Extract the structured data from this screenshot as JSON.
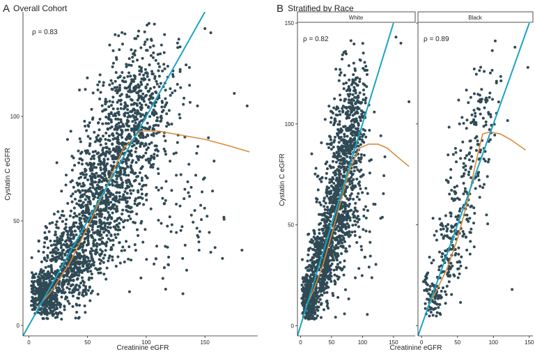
{
  "panels": [
    {
      "letter": "A",
      "title": "Overall Cohort",
      "xlabel": "Creatinine eGFR",
      "ylabel": "Cystatin C eGFR"
    },
    {
      "letter": "B",
      "title": "Stratified by Race",
      "xlabel": "Creatinine eGFR",
      "ylabel": "Cystatin C eGFR",
      "facets": [
        "White",
        "Black"
      ]
    }
  ],
  "colors": {
    "points": "#2f4a55",
    "identity_line": "#1aa3c4",
    "smooth_line": "#d9893a",
    "axis": "#222222",
    "strip_fill": "#ffffff"
  },
  "chart_data": [
    {
      "type": "scatter",
      "title": "Overall Cohort",
      "xlabel": "Creatinine eGFR",
      "ylabel": "Cystatin C eGFR",
      "xlim": [
        -5,
        195
      ],
      "ylim": [
        -5,
        150
      ],
      "xticks": [
        0,
        50,
        100,
        150
      ],
      "yticks": [
        0,
        50,
        100
      ],
      "grid": false,
      "annotation": "ρ = 0.83",
      "identity_line": {
        "x": [
          -5,
          150
        ],
        "y": [
          -5,
          150
        ]
      },
      "smooth_line": {
        "x": [
          8,
          20,
          35,
          50,
          65,
          80,
          95,
          110,
          130,
          150,
          170,
          188
        ],
        "y": [
          9,
          17,
          30,
          47,
          65,
          84,
          93,
          93,
          91,
          89,
          86,
          83
        ]
      },
      "n_points_approx": 2500,
      "point_clusters": [
        {
          "x": 15,
          "y": 15,
          "sx": 7,
          "sy": 6,
          "n": 420
        },
        {
          "x": 35,
          "y": 32,
          "sx": 11,
          "sy": 10,
          "n": 560
        },
        {
          "x": 58,
          "y": 58,
          "sx": 12,
          "sy": 14,
          "n": 560
        },
        {
          "x": 80,
          "y": 85,
          "sx": 14,
          "sy": 18,
          "n": 560
        },
        {
          "x": 100,
          "y": 108,
          "sx": 15,
          "sy": 16,
          "n": 300
        },
        {
          "x": 120,
          "y": 55,
          "sx": 22,
          "sy": 22,
          "n": 100
        }
      ],
      "notable_points": [
        {
          "x": 150,
          "y": 142
        },
        {
          "x": 155,
          "y": 140
        },
        {
          "x": 175,
          "y": 111
        },
        {
          "x": 186,
          "y": 105
        },
        {
          "x": 145,
          "y": 36
        },
        {
          "x": 155,
          "y": 35
        }
      ]
    },
    {
      "type": "scatter",
      "facet": "White",
      "xlabel": "Creatinine eGFR",
      "ylabel": "Cystatin C eGFR",
      "xlim": [
        -5,
        185
      ],
      "ylim": [
        -5,
        150
      ],
      "xticks": [
        0,
        50,
        100,
        150
      ],
      "yticks": [
        0,
        50,
        100,
        150
      ],
      "grid": false,
      "annotation": "ρ = 0.82",
      "identity_line": {
        "x": [
          -5,
          150
        ],
        "y": [
          -5,
          150
        ]
      },
      "smooth_line": {
        "x": [
          8,
          20,
          35,
          50,
          65,
          80,
          95,
          110,
          125,
          140,
          155,
          175
        ],
        "y": [
          9,
          17,
          29,
          45,
          62,
          78,
          88,
          90,
          90,
          88,
          84,
          79
        ]
      },
      "n_points_approx": 1800,
      "point_clusters": [
        {
          "x": 15,
          "y": 14,
          "sx": 7,
          "sy": 6,
          "n": 320
        },
        {
          "x": 35,
          "y": 32,
          "sx": 11,
          "sy": 10,
          "n": 420
        },
        {
          "x": 55,
          "y": 55,
          "sx": 12,
          "sy": 14,
          "n": 420
        },
        {
          "x": 72,
          "y": 80,
          "sx": 12,
          "sy": 18,
          "n": 380
        },
        {
          "x": 90,
          "y": 105,
          "sx": 12,
          "sy": 14,
          "n": 200
        },
        {
          "x": 100,
          "y": 55,
          "sx": 20,
          "sy": 22,
          "n": 60
        }
      ],
      "notable_points": [
        {
          "x": 154,
          "y": 143
        },
        {
          "x": 162,
          "y": 140
        },
        {
          "x": 175,
          "y": 111
        }
      ]
    },
    {
      "type": "scatter",
      "facet": "Black",
      "xlabel": "Creatinine eGFR",
      "ylabel": "Cystatin C eGFR",
      "xlim": [
        -5,
        155
      ],
      "ylim": [
        -5,
        150
      ],
      "xticks": [
        0,
        50,
        100,
        150
      ],
      "yticks": [
        0,
        50,
        100,
        150
      ],
      "grid": false,
      "annotation": "ρ = 0.89",
      "identity_line": {
        "x": [
          -5,
          150
        ],
        "y": [
          -5,
          150
        ]
      },
      "smooth_line": {
        "x": [
          8,
          20,
          35,
          50,
          65,
          75,
          85,
          95,
          110,
          125,
          145
        ],
        "y": [
          9,
          17,
          28,
          43,
          63,
          80,
          95,
          96,
          95,
          92,
          87
        ]
      },
      "n_points_approx": 420,
      "point_clusters": [
        {
          "x": 15,
          "y": 14,
          "sx": 7,
          "sy": 6,
          "n": 80
        },
        {
          "x": 35,
          "y": 32,
          "sx": 10,
          "sy": 10,
          "n": 100
        },
        {
          "x": 55,
          "y": 55,
          "sx": 10,
          "sy": 14,
          "n": 90
        },
        {
          "x": 72,
          "y": 85,
          "sx": 12,
          "sy": 18,
          "n": 90
        },
        {
          "x": 92,
          "y": 110,
          "sx": 12,
          "sy": 14,
          "n": 50
        }
      ],
      "notable_points": [
        {
          "x": 148,
          "y": 128
        },
        {
          "x": 126,
          "y": 18
        },
        {
          "x": 130,
          "y": 138
        }
      ]
    }
  ]
}
